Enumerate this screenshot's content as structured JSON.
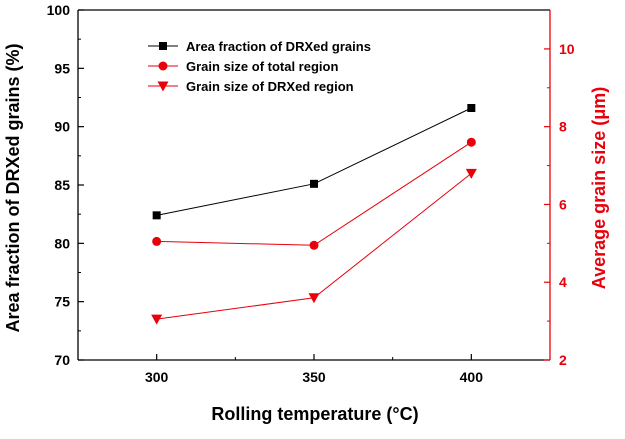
{
  "chart_data": {
    "type": "line",
    "x": [
      300,
      350,
      400
    ],
    "xlabel": "Rolling temperature (°C)",
    "xlim": [
      275,
      425
    ],
    "xticks": [
      300,
      350,
      400
    ],
    "ylabel_left": "Area fraction of DRXed grains (%)",
    "ylim_left": [
      70,
      100
    ],
    "yticks_left": [
      70,
      75,
      80,
      85,
      90,
      95,
      100
    ],
    "ylabel_right": "Average grain size (μm)",
    "ylim_right": [
      2,
      11
    ],
    "yticks_right": [
      2,
      4,
      6,
      8,
      10
    ],
    "legend_position": "top-center",
    "grid": false,
    "series": [
      {
        "name": "Area fraction of DRXed grains",
        "axis": "left",
        "marker": "square",
        "color": "#000000",
        "values": [
          82.4,
          85.1,
          91.6
        ]
      },
      {
        "name": "Grain size of total region",
        "axis": "right",
        "marker": "circle",
        "color": "#e8000b",
        "values": [
          5.05,
          4.95,
          7.6
        ]
      },
      {
        "name": "Grain size of DRXed region",
        "axis": "right",
        "marker": "triangle-down",
        "color": "#e8000b",
        "values": [
          3.05,
          3.6,
          6.8
        ]
      }
    ],
    "colors": {
      "left_axis": "#000000",
      "right_axis": "#e8000b"
    }
  }
}
